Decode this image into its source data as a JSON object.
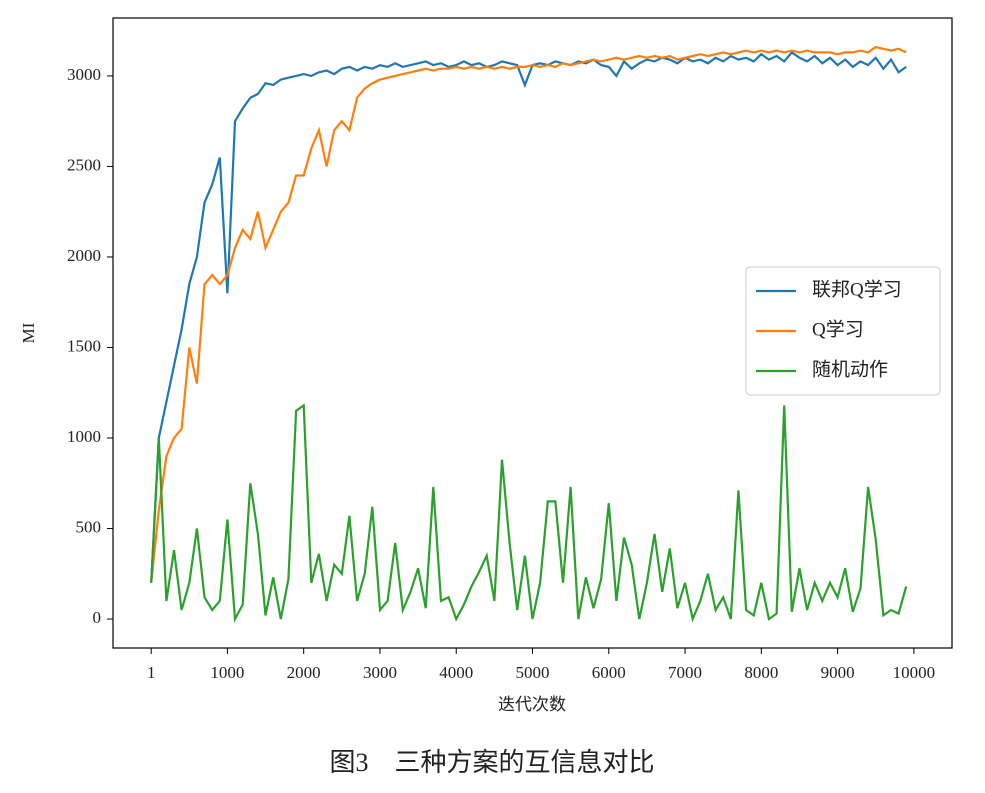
{
  "chart_data": {
    "type": "line",
    "caption": "图3　三种方案的互信息对比",
    "x_label": "迭代次数",
    "y_label": "MI",
    "x": [
      1,
      100,
      200,
      300,
      400,
      500,
      600,
      700,
      800,
      900,
      1000,
      1100,
      1200,
      1300,
      1400,
      1500,
      1600,
      1700,
      1800,
      1900,
      2000,
      2100,
      2200,
      2300,
      2400,
      2500,
      2600,
      2700,
      2800,
      2900,
      3000,
      3100,
      3200,
      3300,
      3400,
      3500,
      3600,
      3700,
      3800,
      3900,
      4000,
      4100,
      4200,
      4300,
      4400,
      4500,
      4600,
      4700,
      4800,
      4900,
      5000,
      5100,
      5200,
      5300,
      5400,
      5500,
      5600,
      5700,
      5800,
      5900,
      6000,
      6100,
      6200,
      6300,
      6400,
      6500,
      6600,
      6700,
      6800,
      6900,
      7000,
      7100,
      7200,
      7300,
      7400,
      7500,
      7600,
      7700,
      7800,
      7900,
      8000,
      8100,
      8200,
      8300,
      8400,
      8500,
      8600,
      8700,
      8800,
      8900,
      9000,
      9100,
      9200,
      9300,
      9400,
      9500,
      9600,
      9700,
      9800,
      9900
    ],
    "series": [
      {
        "name": "联邦Q学习",
        "color": "#1f77b4",
        "values": [
          200,
          1000,
          1200,
          1400,
          1600,
          1850,
          2000,
          2300,
          2400,
          2550,
          1800,
          2750,
          2820,
          2880,
          2900,
          2960,
          2950,
          2980,
          2990,
          3000,
          3010,
          3000,
          3020,
          3030,
          3010,
          3040,
          3050,
          3030,
          3050,
          3040,
          3060,
          3050,
          3070,
          3050,
          3060,
          3070,
          3080,
          3060,
          3070,
          3050,
          3060,
          3080,
          3060,
          3070,
          3050,
          3060,
          3080,
          3070,
          3060,
          2950,
          3060,
          3070,
          3060,
          3080,
          3070,
          3060,
          3080,
          3070,
          3090,
          3060,
          3050,
          3000,
          3080,
          3040,
          3070,
          3090,
          3080,
          3100,
          3090,
          3070,
          3100,
          3080,
          3090,
          3070,
          3100,
          3080,
          3110,
          3090,
          3100,
          3080,
          3120,
          3090,
          3110,
          3080,
          3130,
          3100,
          3080,
          3110,
          3070,
          3100,
          3060,
          3090,
          3050,
          3080,
          3060,
          3100,
          3040,
          3090,
          3020,
          3050
        ]
      },
      {
        "name": "Q学习",
        "color": "#ff7f0e",
        "values": [
          200,
          600,
          900,
          1000,
          1050,
          1500,
          1300,
          1850,
          1900,
          1850,
          1900,
          2050,
          2150,
          2100,
          2250,
          2050,
          2150,
          2250,
          2300,
          2450,
          2450,
          2600,
          2700,
          2500,
          2700,
          2750,
          2700,
          2880,
          2930,
          2960,
          2980,
          2990,
          3000,
          3010,
          3020,
          3030,
          3040,
          3030,
          3040,
          3040,
          3050,
          3040,
          3050,
          3040,
          3050,
          3040,
          3050,
          3040,
          3050,
          3050,
          3060,
          3050,
          3060,
          3050,
          3070,
          3060,
          3070,
          3080,
          3090,
          3080,
          3090,
          3100,
          3090,
          3100,
          3110,
          3100,
          3110,
          3100,
          3110,
          3090,
          3100,
          3110,
          3120,
          3110,
          3120,
          3130,
          3120,
          3130,
          3140,
          3130,
          3140,
          3130,
          3140,
          3130,
          3140,
          3130,
          3140,
          3130,
          3130,
          3130,
          3120,
          3130,
          3130,
          3140,
          3130,
          3160,
          3150,
          3140,
          3150,
          3130
        ]
      },
      {
        "name": "随机动作",
        "color": "#2ca02c",
        "values": [
          200,
          1000,
          100,
          380,
          50,
          200,
          500,
          120,
          50,
          100,
          550,
          0,
          80,
          750,
          470,
          20,
          230,
          0,
          220,
          1150,
          1180,
          200,
          360,
          100,
          300,
          250,
          570,
          100,
          250,
          620,
          50,
          100,
          420,
          50,
          150,
          280,
          60,
          730,
          100,
          120,
          0,
          80,
          180,
          260,
          350,
          100,
          880,
          420,
          50,
          350,
          0,
          200,
          650,
          650,
          200,
          730,
          0,
          230,
          60,
          220,
          640,
          100,
          450,
          300,
          0,
          200,
          470,
          150,
          390,
          60,
          200,
          0,
          100,
          250,
          50,
          120,
          0,
          710,
          50,
          20,
          200,
          0,
          30,
          1180,
          40,
          280,
          50,
          200,
          100,
          200,
          120,
          280,
          40,
          170,
          730,
          440,
          20,
          50,
          30,
          180
        ]
      }
    ],
    "xlim": [
      -500,
      10500
    ],
    "ylim": [
      -160,
      3320
    ],
    "xticks": [
      1,
      1000,
      2000,
      3000,
      4000,
      5000,
      6000,
      7000,
      8000,
      9000,
      10000
    ],
    "yticks": [
      0,
      500,
      1000,
      1500,
      2000,
      2500,
      3000
    ],
    "legend": "right"
  }
}
